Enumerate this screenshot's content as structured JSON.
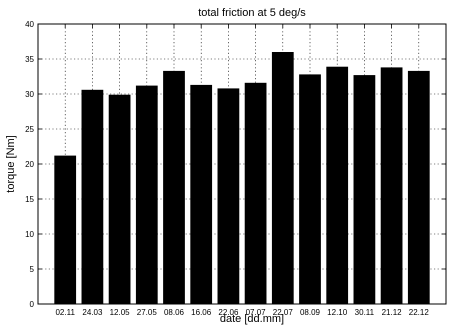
{
  "chart_data": {
    "type": "bar",
    "title": "total friction at 5 deg/s",
    "xlabel": "date [dd.mm]",
    "ylabel": "torque [Nm]",
    "categories": [
      "02.11",
      "24.03",
      "12.05",
      "27.05",
      "08.06",
      "16.06",
      "22.06",
      "07.07",
      "22.07",
      "08.09",
      "12.10",
      "30.11",
      "21.12",
      "22.12"
    ],
    "values": [
      21.2,
      30.6,
      29.9,
      31.2,
      33.3,
      31.3,
      30.8,
      31.6,
      36.0,
      32.8,
      33.9,
      32.7,
      33.8,
      33.3
    ],
    "ylim": [
      0,
      40
    ],
    "yticks": [
      0,
      5,
      10,
      15,
      20,
      25,
      30,
      35,
      40
    ],
    "grid": true,
    "bar_color": "#000000"
  }
}
